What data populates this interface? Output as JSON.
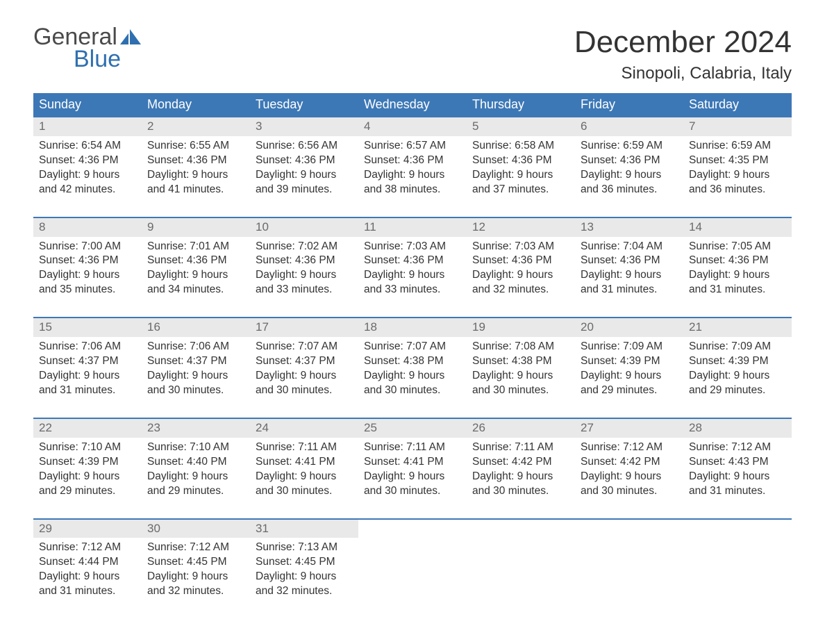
{
  "brand": {
    "word1": "General",
    "word2": "Blue",
    "logo_color": "#2f6fb0",
    "text_color": "#4a4a4a"
  },
  "header": {
    "month_title": "December 2024",
    "location": "Sinopoli, Calabria, Italy"
  },
  "colors": {
    "header_bg": "#3d78b6",
    "header_text": "#ffffff",
    "week_rule": "#3d78b6",
    "daynum_bg": "#e9e9e9",
    "daynum_text": "#6a6a6a",
    "body_text": "#333333",
    "background": "#ffffff"
  },
  "typography": {
    "title_fontsize": 44,
    "location_fontsize": 24,
    "dow_fontsize": 18,
    "body_fontsize": 15.5,
    "logo_fontsize": 34
  },
  "days_of_week": [
    "Sunday",
    "Monday",
    "Tuesday",
    "Wednesday",
    "Thursday",
    "Friday",
    "Saturday"
  ],
  "weeks": [
    [
      {
        "num": "1",
        "sunrise": "Sunrise: 6:54 AM",
        "sunset": "Sunset: 4:36 PM",
        "dl1": "Daylight: 9 hours",
        "dl2": "and 42 minutes."
      },
      {
        "num": "2",
        "sunrise": "Sunrise: 6:55 AM",
        "sunset": "Sunset: 4:36 PM",
        "dl1": "Daylight: 9 hours",
        "dl2": "and 41 minutes."
      },
      {
        "num": "3",
        "sunrise": "Sunrise: 6:56 AM",
        "sunset": "Sunset: 4:36 PM",
        "dl1": "Daylight: 9 hours",
        "dl2": "and 39 minutes."
      },
      {
        "num": "4",
        "sunrise": "Sunrise: 6:57 AM",
        "sunset": "Sunset: 4:36 PM",
        "dl1": "Daylight: 9 hours",
        "dl2": "and 38 minutes."
      },
      {
        "num": "5",
        "sunrise": "Sunrise: 6:58 AM",
        "sunset": "Sunset: 4:36 PM",
        "dl1": "Daylight: 9 hours",
        "dl2": "and 37 minutes."
      },
      {
        "num": "6",
        "sunrise": "Sunrise: 6:59 AM",
        "sunset": "Sunset: 4:36 PM",
        "dl1": "Daylight: 9 hours",
        "dl2": "and 36 minutes."
      },
      {
        "num": "7",
        "sunrise": "Sunrise: 6:59 AM",
        "sunset": "Sunset: 4:35 PM",
        "dl1": "Daylight: 9 hours",
        "dl2": "and 36 minutes."
      }
    ],
    [
      {
        "num": "8",
        "sunrise": "Sunrise: 7:00 AM",
        "sunset": "Sunset: 4:36 PM",
        "dl1": "Daylight: 9 hours",
        "dl2": "and 35 minutes."
      },
      {
        "num": "9",
        "sunrise": "Sunrise: 7:01 AM",
        "sunset": "Sunset: 4:36 PM",
        "dl1": "Daylight: 9 hours",
        "dl2": "and 34 minutes."
      },
      {
        "num": "10",
        "sunrise": "Sunrise: 7:02 AM",
        "sunset": "Sunset: 4:36 PM",
        "dl1": "Daylight: 9 hours",
        "dl2": "and 33 minutes."
      },
      {
        "num": "11",
        "sunrise": "Sunrise: 7:03 AM",
        "sunset": "Sunset: 4:36 PM",
        "dl1": "Daylight: 9 hours",
        "dl2": "and 33 minutes."
      },
      {
        "num": "12",
        "sunrise": "Sunrise: 7:03 AM",
        "sunset": "Sunset: 4:36 PM",
        "dl1": "Daylight: 9 hours",
        "dl2": "and 32 minutes."
      },
      {
        "num": "13",
        "sunrise": "Sunrise: 7:04 AM",
        "sunset": "Sunset: 4:36 PM",
        "dl1": "Daylight: 9 hours",
        "dl2": "and 31 minutes."
      },
      {
        "num": "14",
        "sunrise": "Sunrise: 7:05 AM",
        "sunset": "Sunset: 4:36 PM",
        "dl1": "Daylight: 9 hours",
        "dl2": "and 31 minutes."
      }
    ],
    [
      {
        "num": "15",
        "sunrise": "Sunrise: 7:06 AM",
        "sunset": "Sunset: 4:37 PM",
        "dl1": "Daylight: 9 hours",
        "dl2": "and 31 minutes."
      },
      {
        "num": "16",
        "sunrise": "Sunrise: 7:06 AM",
        "sunset": "Sunset: 4:37 PM",
        "dl1": "Daylight: 9 hours",
        "dl2": "and 30 minutes."
      },
      {
        "num": "17",
        "sunrise": "Sunrise: 7:07 AM",
        "sunset": "Sunset: 4:37 PM",
        "dl1": "Daylight: 9 hours",
        "dl2": "and 30 minutes."
      },
      {
        "num": "18",
        "sunrise": "Sunrise: 7:07 AM",
        "sunset": "Sunset: 4:38 PM",
        "dl1": "Daylight: 9 hours",
        "dl2": "and 30 minutes."
      },
      {
        "num": "19",
        "sunrise": "Sunrise: 7:08 AM",
        "sunset": "Sunset: 4:38 PM",
        "dl1": "Daylight: 9 hours",
        "dl2": "and 30 minutes."
      },
      {
        "num": "20",
        "sunrise": "Sunrise: 7:09 AM",
        "sunset": "Sunset: 4:39 PM",
        "dl1": "Daylight: 9 hours",
        "dl2": "and 29 minutes."
      },
      {
        "num": "21",
        "sunrise": "Sunrise: 7:09 AM",
        "sunset": "Sunset: 4:39 PM",
        "dl1": "Daylight: 9 hours",
        "dl2": "and 29 minutes."
      }
    ],
    [
      {
        "num": "22",
        "sunrise": "Sunrise: 7:10 AM",
        "sunset": "Sunset: 4:39 PM",
        "dl1": "Daylight: 9 hours",
        "dl2": "and 29 minutes."
      },
      {
        "num": "23",
        "sunrise": "Sunrise: 7:10 AM",
        "sunset": "Sunset: 4:40 PM",
        "dl1": "Daylight: 9 hours",
        "dl2": "and 29 minutes."
      },
      {
        "num": "24",
        "sunrise": "Sunrise: 7:11 AM",
        "sunset": "Sunset: 4:41 PM",
        "dl1": "Daylight: 9 hours",
        "dl2": "and 30 minutes."
      },
      {
        "num": "25",
        "sunrise": "Sunrise: 7:11 AM",
        "sunset": "Sunset: 4:41 PM",
        "dl1": "Daylight: 9 hours",
        "dl2": "and 30 minutes."
      },
      {
        "num": "26",
        "sunrise": "Sunrise: 7:11 AM",
        "sunset": "Sunset: 4:42 PM",
        "dl1": "Daylight: 9 hours",
        "dl2": "and 30 minutes."
      },
      {
        "num": "27",
        "sunrise": "Sunrise: 7:12 AM",
        "sunset": "Sunset: 4:42 PM",
        "dl1": "Daylight: 9 hours",
        "dl2": "and 30 minutes."
      },
      {
        "num": "28",
        "sunrise": "Sunrise: 7:12 AM",
        "sunset": "Sunset: 4:43 PM",
        "dl1": "Daylight: 9 hours",
        "dl2": "and 31 minutes."
      }
    ],
    [
      {
        "num": "29",
        "sunrise": "Sunrise: 7:12 AM",
        "sunset": "Sunset: 4:44 PM",
        "dl1": "Daylight: 9 hours",
        "dl2": "and 31 minutes."
      },
      {
        "num": "30",
        "sunrise": "Sunrise: 7:12 AM",
        "sunset": "Sunset: 4:45 PM",
        "dl1": "Daylight: 9 hours",
        "dl2": "and 32 minutes."
      },
      {
        "num": "31",
        "sunrise": "Sunrise: 7:13 AM",
        "sunset": "Sunset: 4:45 PM",
        "dl1": "Daylight: 9 hours",
        "dl2": "and 32 minutes."
      },
      {
        "empty": true
      },
      {
        "empty": true
      },
      {
        "empty": true
      },
      {
        "empty": true
      }
    ]
  ]
}
